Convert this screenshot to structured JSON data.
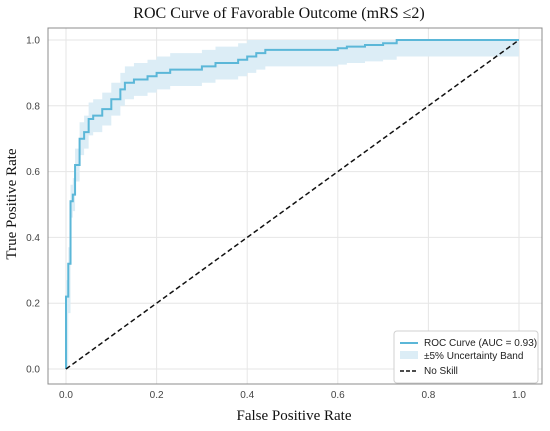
{
  "chart_data": {
    "type": "line",
    "title": "ROC Curve of Favorable Outcome (mRS  ≤2)",
    "xlabel": "False Positive Rate",
    "ylabel": "True Positive Rate",
    "xlim": [
      0,
      1
    ],
    "ylim": [
      0,
      1
    ],
    "x_ticks": [
      "0.0",
      "0.2",
      "0.4",
      "0.6",
      "0.8",
      "1.0"
    ],
    "y_ticks": [
      "0.0",
      "0.2",
      "0.4",
      "0.6",
      "0.8",
      "1.0"
    ],
    "grid": true,
    "legend_position": "bottom-right",
    "colors": {
      "roc": "#5bb7d8",
      "band": "#dcedf6",
      "no_skill": "#111111",
      "grid": "#e6e6e6",
      "spine": "#8c8c8c"
    },
    "series": [
      {
        "name": "ROC Curve (AUC = 0.93)",
        "style": "solid",
        "x": [
          0,
          0,
          0.005,
          0.005,
          0.01,
          0.01,
          0.015,
          0.015,
          0.02,
          0.02,
          0.03,
          0.03,
          0.04,
          0.04,
          0.05,
          0.05,
          0.06,
          0.06,
          0.08,
          0.08,
          0.1,
          0.1,
          0.12,
          0.12,
          0.13,
          0.13,
          0.15,
          0.15,
          0.18,
          0.18,
          0.2,
          0.2,
          0.23,
          0.23,
          0.3,
          0.3,
          0.33,
          0.33,
          0.38,
          0.38,
          0.4,
          0.4,
          0.42,
          0.42,
          0.44,
          0.44,
          0.6,
          0.6,
          0.62,
          0.62,
          0.66,
          0.66,
          0.7,
          0.7,
          0.73,
          0.73,
          1.0
        ],
        "y": [
          0,
          0.22,
          0.22,
          0.32,
          0.32,
          0.51,
          0.51,
          0.53,
          0.53,
          0.62,
          0.62,
          0.7,
          0.7,
          0.72,
          0.72,
          0.76,
          0.76,
          0.77,
          0.77,
          0.79,
          0.79,
          0.82,
          0.82,
          0.85,
          0.85,
          0.87,
          0.87,
          0.88,
          0.88,
          0.89,
          0.89,
          0.9,
          0.9,
          0.91,
          0.91,
          0.92,
          0.92,
          0.93,
          0.93,
          0.94,
          0.94,
          0.95,
          0.95,
          0.96,
          0.96,
          0.97,
          0.97,
          0.975,
          0.975,
          0.98,
          0.98,
          0.985,
          0.985,
          0.99,
          0.99,
          1.0,
          1.0
        ]
      },
      {
        "name": "No Skill",
        "style": "dashed",
        "x": [
          0,
          1
        ],
        "y": [
          0,
          1
        ]
      }
    ],
    "band": {
      "name": "±5% Uncertainty Band",
      "x": [
        0,
        0.005,
        0.01,
        0.015,
        0.02,
        0.03,
        0.04,
        0.05,
        0.06,
        0.08,
        0.1,
        0.12,
        0.13,
        0.15,
        0.18,
        0.2,
        0.23,
        0.3,
        0.33,
        0.38,
        0.4,
        0.42,
        0.44,
        0.6,
        0.62,
        0.66,
        0.7,
        0.73,
        1.0
      ],
      "lower": [
        0.0,
        0.17,
        0.46,
        0.48,
        0.57,
        0.65,
        0.67,
        0.71,
        0.72,
        0.74,
        0.77,
        0.8,
        0.82,
        0.83,
        0.84,
        0.85,
        0.86,
        0.87,
        0.88,
        0.89,
        0.9,
        0.91,
        0.92,
        0.925,
        0.93,
        0.935,
        0.94,
        0.95,
        0.95
      ],
      "upper": [
        0.27,
        0.37,
        0.56,
        0.58,
        0.67,
        0.75,
        0.77,
        0.81,
        0.82,
        0.84,
        0.87,
        0.9,
        0.92,
        0.93,
        0.94,
        0.95,
        0.96,
        0.97,
        0.98,
        0.99,
        1.0,
        1.0,
        1.0,
        1.0,
        1.0,
        1.0,
        1.0,
        1.0,
        1.0
      ]
    }
  }
}
